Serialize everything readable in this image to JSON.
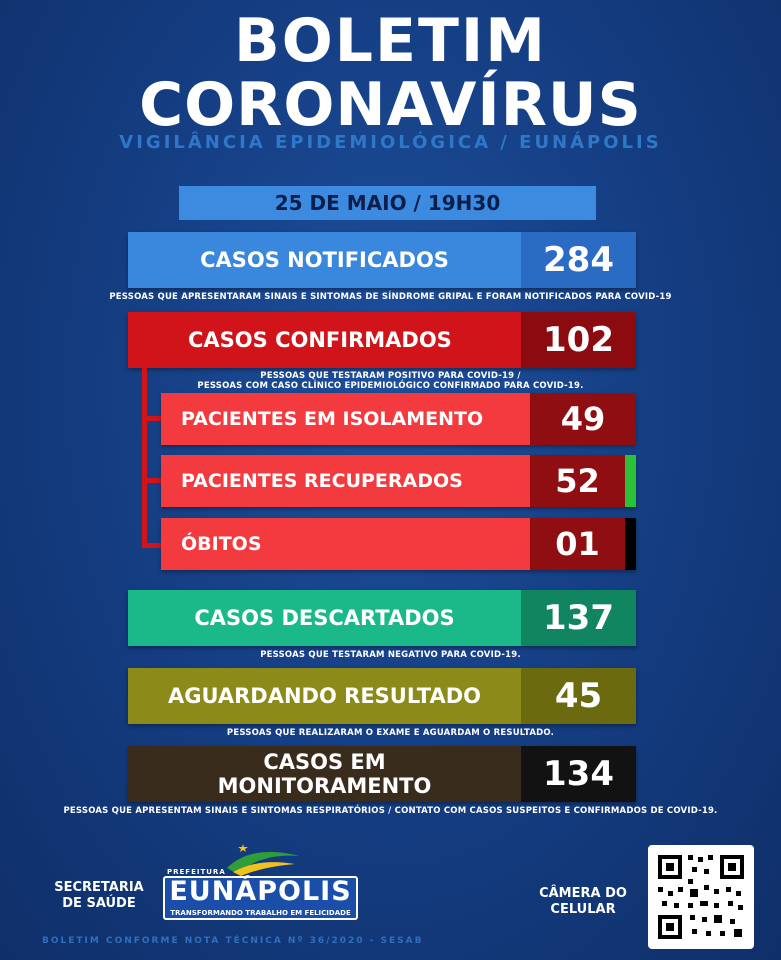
{
  "header": {
    "title_line1": "BOLETIM",
    "title_line2": "CORONAVÍRUS",
    "subtitle": "VIGILÂNCIA EPIDEMIOLÓGICA / EUNÁPOLIS"
  },
  "date": "25 DE MAIO / 19H30",
  "rows": {
    "notificados": {
      "label": "CASOS NOTIFICADOS",
      "value": "284",
      "note": "PESSOAS QUE APRESENTARAM SINAIS E SINTOMAS DE SÍNDROME GRIPAL E FORAM NOTIFICADOS PARA COVID-19",
      "color": "#3a87de",
      "value_color": "#2a6cc4"
    },
    "confirmados": {
      "label": "CASOS CONFIRMADOS",
      "value": "102",
      "note_line1": "PESSOAS QUE TESTARAM POSITIVO PARA COVID-19 /",
      "note_line2": "PESSOAS COM CASO CLÍNICO EPIDEMIOLÓGICO CONFIRMADO PARA COVID-19.",
      "color": "#d0141a",
      "value_color": "#8c0b10"
    },
    "isolamento": {
      "label": "PACIENTES EM ISOLAMENTO",
      "value": "49"
    },
    "recuperados": {
      "label": "PACIENTES RECUPERADOS",
      "value": "52",
      "marker_color": "#2bc23a"
    },
    "obitos": {
      "label": "ÓBITOS",
      "value": "01",
      "marker_color": "#000000"
    },
    "descartados": {
      "label": "CASOS DESCARTADOS",
      "value": "137",
      "note": "PESSOAS QUE TESTARAM NEGATIVO PARA COVID-19.",
      "color": "#1bb98a",
      "value_color": "#11855f"
    },
    "aguardando": {
      "label": "AGUARDANDO RESULTADO",
      "value": "45",
      "note": "PESSOAS QUE REALIZARAM O EXAME E AGUARDAM O RESULTADO.",
      "color": "#8c8a18",
      "value_color": "#6b6a0e"
    },
    "monitoramento": {
      "label_line1": "CASOS EM",
      "label_line2": "MONITORAMENTO",
      "value": "134",
      "note": "PESSOAS QUE APRESENTAM SINAIS E SINTOMAS RESPIRATÓRIOS / CONTATO COM CASOS SUSPEITOS  E CONFIRMADOS DE COVID-19.",
      "color": "#3a2c1c",
      "value_color": "#121212"
    }
  },
  "sub_colors": {
    "label": "#f23a3f",
    "value": "#8f0e12"
  },
  "footer": {
    "secretaria_line1": "SECRETARIA",
    "secretaria_line2": "DE SAÚDE",
    "logo_prefix": "PREFEITURA",
    "logo_name": "EUNÁPOLIS",
    "logo_tagline": "TRANSFORMANDO TRABALHO EM FELICIDADE",
    "camera_line1": "CÂMERA DO",
    "camera_line2": "CELULAR",
    "qr_icon": "qr-code-icon",
    "bottom_note": "BOLETIM CONFORME NOTA TÉCNICA Nº 36/2020 - SESAB"
  }
}
